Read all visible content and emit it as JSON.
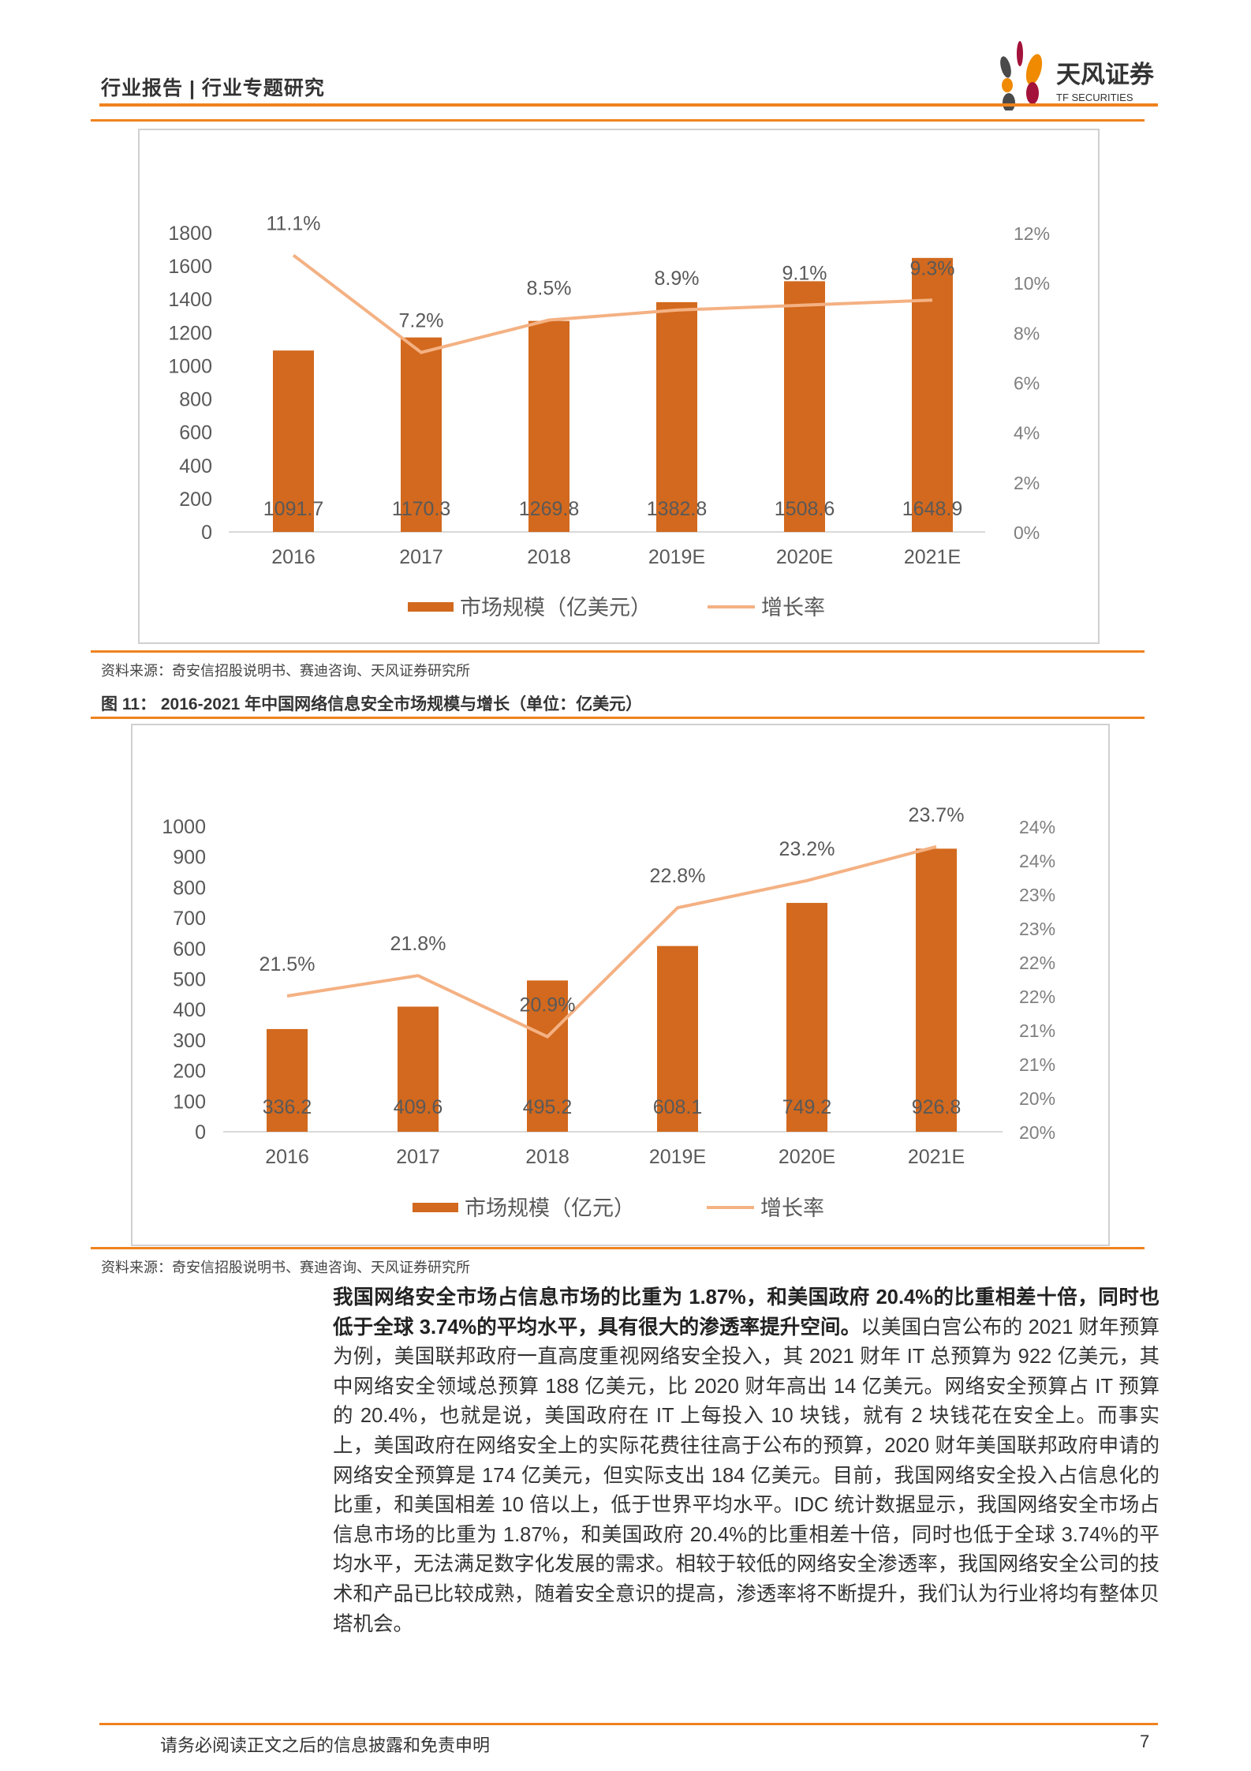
{
  "header": {
    "title": "行业报告 | 行业专题研究",
    "logo_text": "天风证券",
    "logo_subtext": "TF SECURITIES",
    "accent_color": "#F0821E"
  },
  "figure10": {
    "source": "资料来源：奇安信招股说明书、赛迪咨询、天风证券研究所"
  },
  "figure11": {
    "title": "图 11：  2016-2021 年中国网络信息安全市场规模与增长（单位：亿美元）",
    "source": "资料来源：奇安信招股说明书、赛迪咨询、天风证券研究所"
  },
  "chart_data": [
    {
      "type": "bar+line",
      "categories": [
        "2016",
        "2017",
        "2018",
        "2019E",
        "2020E",
        "2021E"
      ],
      "series": [
        {
          "name": "市场规模（亿美元）",
          "type": "bar",
          "axis": "left",
          "values": [
            1091.7,
            1170.3,
            1269.8,
            1382.8,
            1508.6,
            1648.9
          ],
          "labels": [
            "1091.7",
            "1170.3",
            "1269.8",
            "1382.8",
            "1508.6",
            "1648.9"
          ],
          "color": "#D2691E"
        },
        {
          "name": "增长率",
          "type": "line",
          "axis": "right",
          "values": [
            11.1,
            7.2,
            8.5,
            8.9,
            9.1,
            9.3
          ],
          "labels": [
            "11.1%",
            "7.2%",
            "8.5%",
            "8.9%",
            "9.1%",
            "9.3%"
          ],
          "color": "#F4B183"
        }
      ],
      "left_axis": {
        "range": [
          0,
          1800
        ],
        "ticks": [
          "0",
          "200",
          "400",
          "600",
          "800",
          "1000",
          "1200",
          "1400",
          "1600",
          "1800"
        ]
      },
      "right_axis": {
        "range": [
          0,
          12
        ],
        "ticks": [
          "0%",
          "2%",
          "4%",
          "6%",
          "8%",
          "10%",
          "12%"
        ]
      },
      "legend": "bottom",
      "grid": false
    },
    {
      "type": "bar+line",
      "categories": [
        "2016",
        "2017",
        "2018",
        "2019E",
        "2020E",
        "2021E"
      ],
      "series": [
        {
          "name": "市场规模（亿元）",
          "type": "bar",
          "axis": "left",
          "values": [
            336.2,
            409.6,
            495.2,
            608.1,
            749.2,
            926.8
          ],
          "labels": [
            "336.2",
            "409.6",
            "495.2",
            "608.1",
            "749.2",
            "926.8"
          ],
          "color": "#D2691E"
        },
        {
          "name": "增长率",
          "type": "line",
          "axis": "right",
          "values": [
            21.5,
            21.8,
            20.9,
            22.8,
            23.2,
            23.7
          ],
          "labels": [
            "21.5%",
            "21.8%",
            "20.9%",
            "22.8%",
            "23.2%",
            "23.7%"
          ],
          "color": "#F4B183"
        }
      ],
      "left_axis": {
        "range": [
          0,
          1000
        ],
        "ticks": [
          "0",
          "100",
          "200",
          "300",
          "400",
          "500",
          "600",
          "700",
          "800",
          "900",
          "1000"
        ]
      },
      "right_axis": {
        "range": [
          19.5,
          24
        ],
        "ticks": [
          "20%",
          "20%",
          "21%",
          "21%",
          "22%",
          "22%",
          "23%",
          "23%",
          "24%",
          "24%"
        ]
      },
      "legend": "bottom",
      "grid": false
    }
  ],
  "body": {
    "bold": "我国网络安全市场占信息市场的比重为 1.87%，和美国政府 20.4%的比重相差十倍，同时也低于全球  3.74%的平均水平，具有很大的渗透率提升空间。",
    "text": "以美国白宫公布的 2021 财年预算为例，美国联邦政府一直高度重视网络安全投入，其 2021 财年 IT 总预算为 922 亿美元，其中网络安全领域总预算 188 亿美元，比 2020 财年高出 14 亿美元。网络安全预算占 IT 预算的 20.4%，也就是说，美国政府在 IT 上每投入 10 块钱，就有 2 块钱花在安全上。而事实上，美国政府在网络安全上的实际花费往往高于公布的预算，2020 财年美国联邦政府申请的网络安全预算是 174 亿美元，但实际支出 184 亿美元。目前，我国网络安全投入占信息化的比重，和美国相差 10 倍以上，低于世界平均水平。IDC 统计数据显示，我国网络安全市场占信息市场的比重为 1.87%，和美国政府 20.4%的比重相差十倍，同时也低于全球  3.74%的平均水平，无法满足数字化发展的需求。相较于较低的网络安全渗透率，我国网络安全公司的技术和产品已比较成熟，随着安全意识的提高，渗透率将不断提升，我们认为行业将均有整体贝塔机会。"
  },
  "footer": {
    "disclaimer": "请务必阅读正文之后的信息披露和免责申明",
    "page_number": "7"
  }
}
